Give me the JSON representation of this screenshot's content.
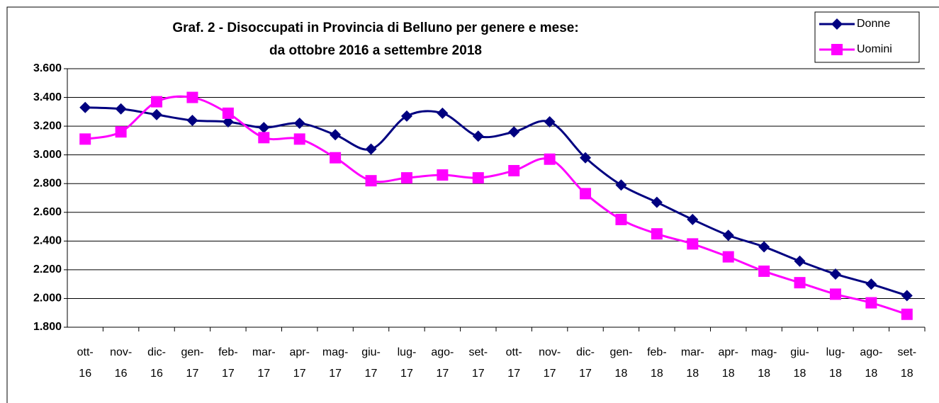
{
  "chart_data": {
    "type": "line",
    "title": [
      "Graf. 2 - Disoccupati in Provincia di Belluno per genere e mese:",
      "da ottobre 2016 a settembre 2018"
    ],
    "categories": [
      "ott-16",
      "nov-16",
      "dic-16",
      "gen-17",
      "feb-17",
      "mar-17",
      "apr-17",
      "mag-17",
      "giu-17",
      "lug-17",
      "ago-17",
      "set-17",
      "ott-17",
      "nov-17",
      "dic-17",
      "gen-18",
      "feb-18",
      "mar-18",
      "apr-18",
      "mag-18",
      "giu-18",
      "lug-18",
      "ago-18",
      "set-18"
    ],
    "series": [
      {
        "name": "Donne",
        "color": "#000080",
        "marker": "diamond",
        "values": [
          3330,
          3320,
          3280,
          3240,
          3230,
          3190,
          3220,
          3140,
          3040,
          3270,
          3290,
          3130,
          3160,
          3230,
          2980,
          2790,
          2670,
          2550,
          2440,
          2360,
          2260,
          2170,
          2100,
          2020
        ]
      },
      {
        "name": "Uomini",
        "color": "#ff00ff",
        "marker": "square",
        "values": [
          3110,
          3160,
          3370,
          3400,
          3290,
          3120,
          3110,
          2980,
          2820,
          2840,
          2860,
          2840,
          2890,
          2970,
          2730,
          2550,
          2450,
          2380,
          2290,
          2190,
          2110,
          2030,
          1970,
          1890
        ]
      }
    ],
    "ylim": [
      1800,
      3600
    ],
    "yticks": [
      {
        "value": 1800,
        "label": "1.800"
      },
      {
        "value": 2000,
        "label": "2.000"
      },
      {
        "value": 2200,
        "label": "2.200"
      },
      {
        "value": 2400,
        "label": "2.400"
      },
      {
        "value": 2600,
        "label": "2.600"
      },
      {
        "value": 2800,
        "label": "2.800"
      },
      {
        "value": 3000,
        "label": "3.000"
      },
      {
        "value": 3200,
        "label": "3.200"
      },
      {
        "value": 3400,
        "label": "3.400"
      },
      {
        "value": 3600,
        "label": "3.600"
      }
    ],
    "grid": true,
    "legend": "top-right"
  }
}
